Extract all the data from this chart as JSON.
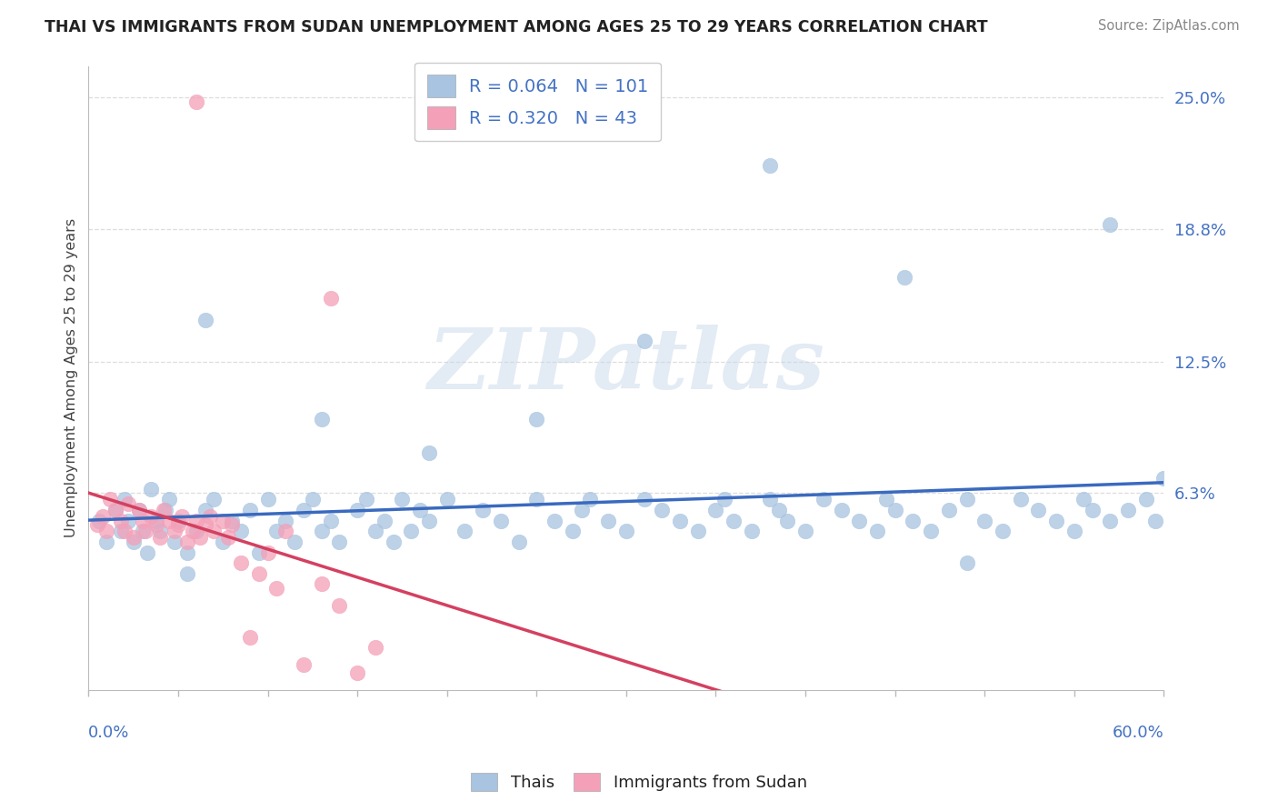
{
  "title": "THAI VS IMMIGRANTS FROM SUDAN UNEMPLOYMENT AMONG AGES 25 TO 29 YEARS CORRELATION CHART",
  "source": "Source: ZipAtlas.com",
  "r_thai": 0.064,
  "n_thai": 101,
  "r_sudan": 0.32,
  "n_sudan": 43,
  "color_thai": "#a8c4e0",
  "color_sudan": "#f4a0b8",
  "trendline_thai_color": "#3a6abf",
  "trendline_sudan_color": "#d44060",
  "ylabel": "Unemployment Among Ages 25 to 29 years",
  "xlim": [
    0.0,
    0.6
  ],
  "ylim": [
    -0.03,
    0.265
  ],
  "ytick_vals": [
    0.063,
    0.125,
    0.188,
    0.25
  ],
  "ytick_labels": [
    "6.3%",
    "12.5%",
    "18.8%",
    "25.0%"
  ],
  "watermark": "ZIPatlas",
  "legend_bottom": [
    "Thais",
    "Immigrants from Sudan"
  ],
  "background_color": "#ffffff",
  "grid_color": "#dddddd",
  "axis_color": "#bbbbbb",
  "title_color": "#222222",
  "source_color": "#888888",
  "tick_label_color": "#4472c4",
  "seed": 42,
  "thai_x": [
    0.006,
    0.01,
    0.015,
    0.018,
    0.02,
    0.022,
    0.025,
    0.028,
    0.03,
    0.033,
    0.035,
    0.038,
    0.04,
    0.043,
    0.045,
    0.048,
    0.05,
    0.055,
    0.06,
    0.065,
    0.07,
    0.075,
    0.08,
    0.085,
    0.09,
    0.095,
    0.1,
    0.105,
    0.11,
    0.115,
    0.12,
    0.125,
    0.13,
    0.135,
    0.14,
    0.15,
    0.155,
    0.16,
    0.165,
    0.17,
    0.175,
    0.18,
    0.185,
    0.19,
    0.2,
    0.21,
    0.22,
    0.23,
    0.24,
    0.25,
    0.26,
    0.27,
    0.275,
    0.28,
    0.29,
    0.3,
    0.31,
    0.32,
    0.33,
    0.34,
    0.35,
    0.355,
    0.36,
    0.37,
    0.38,
    0.385,
    0.39,
    0.4,
    0.41,
    0.42,
    0.43,
    0.44,
    0.445,
    0.45,
    0.46,
    0.47,
    0.48,
    0.49,
    0.5,
    0.51,
    0.52,
    0.53,
    0.54,
    0.55,
    0.555,
    0.56,
    0.57,
    0.58,
    0.59,
    0.595,
    0.38,
    0.57,
    0.455,
    0.31,
    0.25,
    0.19,
    0.13,
    0.065,
    0.49,
    0.6,
    0.055
  ],
  "thai_y": [
    0.05,
    0.04,
    0.055,
    0.045,
    0.06,
    0.05,
    0.04,
    0.055,
    0.045,
    0.035,
    0.065,
    0.05,
    0.045,
    0.055,
    0.06,
    0.04,
    0.05,
    0.035,
    0.045,
    0.055,
    0.06,
    0.04,
    0.05,
    0.045,
    0.055,
    0.035,
    0.06,
    0.045,
    0.05,
    0.04,
    0.055,
    0.06,
    0.045,
    0.05,
    0.04,
    0.055,
    0.06,
    0.045,
    0.05,
    0.04,
    0.06,
    0.045,
    0.055,
    0.05,
    0.06,
    0.045,
    0.055,
    0.05,
    0.04,
    0.06,
    0.05,
    0.045,
    0.055,
    0.06,
    0.05,
    0.045,
    0.06,
    0.055,
    0.05,
    0.045,
    0.055,
    0.06,
    0.05,
    0.045,
    0.06,
    0.055,
    0.05,
    0.045,
    0.06,
    0.055,
    0.05,
    0.045,
    0.06,
    0.055,
    0.05,
    0.045,
    0.055,
    0.06,
    0.05,
    0.045,
    0.06,
    0.055,
    0.05,
    0.045,
    0.06,
    0.055,
    0.05,
    0.055,
    0.06,
    0.05,
    0.218,
    0.19,
    0.165,
    0.135,
    0.098,
    0.082,
    0.098,
    0.145,
    0.03,
    0.07,
    0.025
  ],
  "sudan_x": [
    0.005,
    0.008,
    0.01,
    0.012,
    0.015,
    0.018,
    0.02,
    0.022,
    0.025,
    0.028,
    0.03,
    0.032,
    0.035,
    0.038,
    0.04,
    0.042,
    0.045,
    0.048,
    0.05,
    0.052,
    0.055,
    0.058,
    0.06,
    0.062,
    0.065,
    0.068,
    0.07,
    0.075,
    0.078,
    0.08,
    0.085,
    0.09,
    0.095,
    0.1,
    0.105,
    0.11,
    0.12,
    0.13,
    0.14,
    0.15,
    0.16,
    0.135,
    0.06
  ],
  "sudan_y": [
    0.048,
    0.052,
    0.045,
    0.06,
    0.055,
    0.05,
    0.045,
    0.058,
    0.042,
    0.055,
    0.05,
    0.045,
    0.052,
    0.048,
    0.042,
    0.055,
    0.05,
    0.045,
    0.048,
    0.052,
    0.04,
    0.045,
    0.05,
    0.042,
    0.048,
    0.052,
    0.045,
    0.05,
    0.042,
    0.048,
    0.03,
    -0.005,
    0.025,
    0.035,
    0.018,
    0.045,
    -0.018,
    0.02,
    0.01,
    -0.022,
    -0.01,
    0.155,
    0.248
  ]
}
